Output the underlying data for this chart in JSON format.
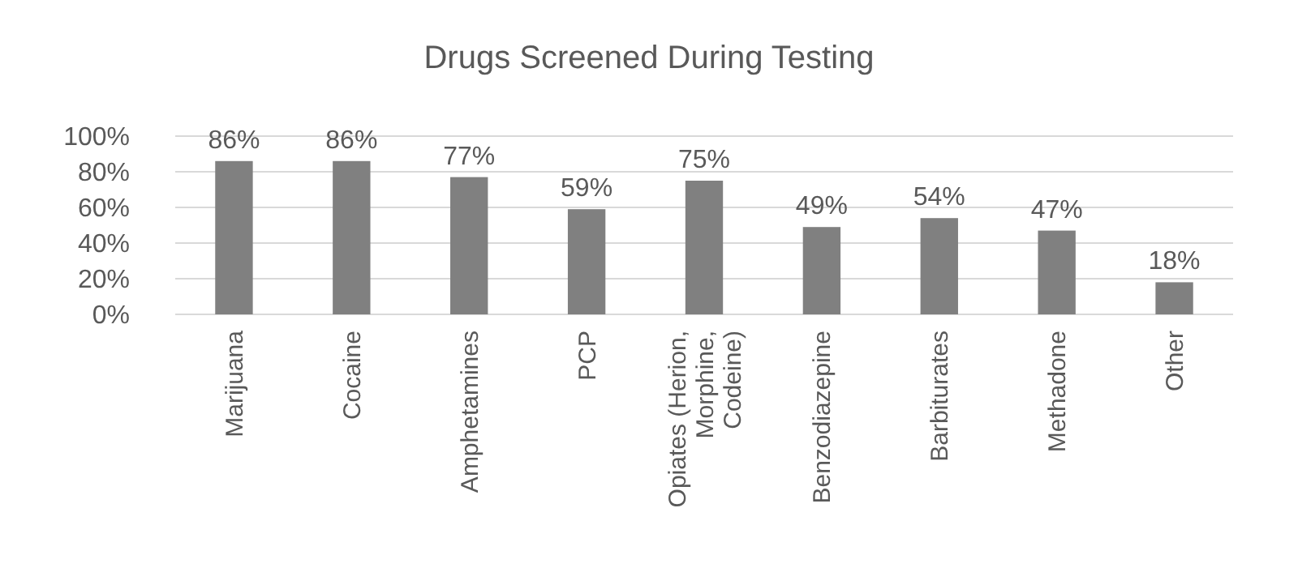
{
  "chart_data": {
    "type": "bar",
    "title": "Drugs Screened During Testing",
    "categories": [
      "Marijuana",
      "Cocaine",
      "Amphetamines",
      "PCP",
      "Opiates (Herion, Morphine, Codeine)",
      "Benzodiazepine",
      "Barbiturates",
      "Methadone",
      "Other"
    ],
    "values": [
      86,
      86,
      77,
      59,
      75,
      49,
      54,
      47,
      18
    ],
    "value_labels": [
      "86%",
      "86%",
      "77%",
      "59%",
      "75%",
      "49%",
      "54%",
      "47%",
      "18%"
    ],
    "color": "#808080",
    "ylim": [
      0,
      100
    ],
    "yticks": [
      {
        "value": 0,
        "label": "0%"
      },
      {
        "value": 20,
        "label": "20%"
      },
      {
        "value": 40,
        "label": "40%"
      },
      {
        "value": 60,
        "label": "60%"
      },
      {
        "value": 80,
        "label": "80%"
      },
      {
        "value": 100,
        "label": "100%"
      }
    ],
    "grid": "y"
  }
}
